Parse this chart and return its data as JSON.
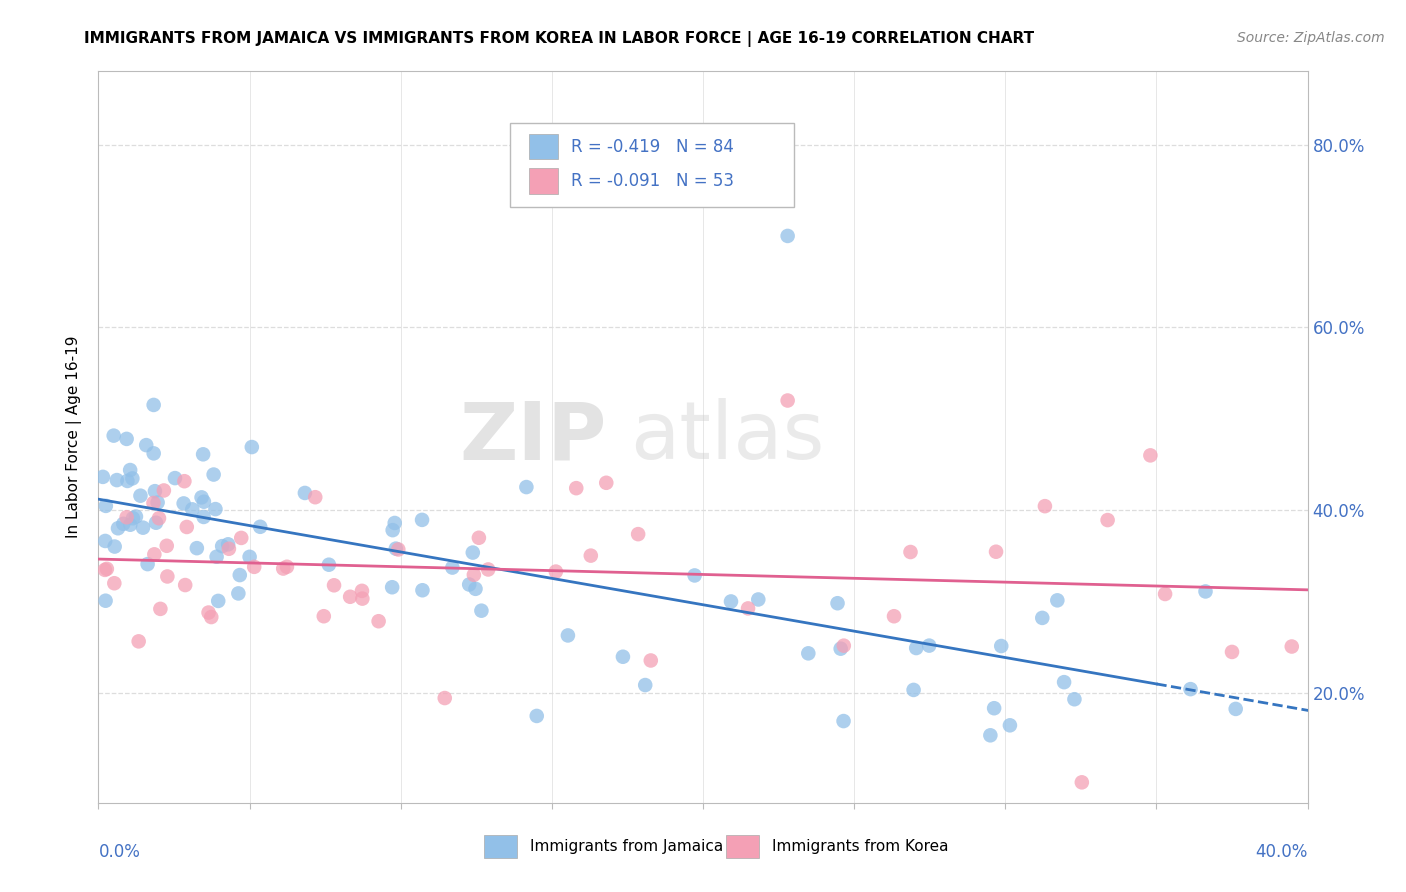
{
  "title": "IMMIGRANTS FROM JAMAICA VS IMMIGRANTS FROM KOREA IN LABOR FORCE | AGE 16-19 CORRELATION CHART",
  "source": "Source: ZipAtlas.com",
  "ylabel": "In Labor Force | Age 16-19",
  "ytick_vals": [
    0.2,
    0.4,
    0.6,
    0.8
  ],
  "ytick_labels": [
    "20.0%",
    "40.0%",
    "60.0%",
    "80.0%"
  ],
  "xlim": [
    0.0,
    0.4
  ],
  "ylim": [
    0.08,
    0.88
  ],
  "jamaica_color": "#92C0E8",
  "korea_color": "#F4A0B5",
  "jamaica_line_color": "#3575C0",
  "korea_line_color": "#E06090",
  "jamaica_R": -0.419,
  "jamaica_N": 84,
  "korea_R": -0.091,
  "korea_N": 53,
  "legend_label_jamaica": "Immigrants from Jamaica",
  "legend_label_korea": "Immigrants from Korea",
  "axis_label_color": "#4472C4",
  "grid_color": "#DDDDDD",
  "title_fontsize": 11,
  "source_fontsize": 10,
  "tick_label_fontsize": 12,
  "ylabel_fontsize": 11
}
